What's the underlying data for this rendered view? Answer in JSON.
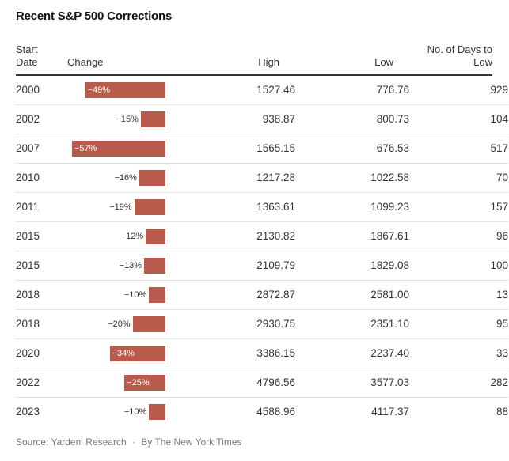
{
  "header": {
    "title": "Recent S&P 500 Corrections",
    "col_start_line1": "Start",
    "col_start_line2": "Date",
    "col_change": "Change",
    "col_high": "High",
    "col_low": "Low",
    "col_days_line1": "No. of Days to",
    "col_days_line2": "Low"
  },
  "footer": {
    "source": "Source: Yardeni Research",
    "separator": "·",
    "credit": "By The New York Times"
  },
  "colors": {
    "bar": "#b85a4c",
    "rule": "#333333",
    "row_border": "#e2e2e2"
  },
  "chart_data": {
    "type": "table",
    "title": "Recent S&P 500 Corrections",
    "columns": [
      "Start Date",
      "Change",
      "High",
      "Low",
      "No. of Days to Low"
    ],
    "rows": [
      {
        "year": "2000",
        "change": -49,
        "change_label": "−49%",
        "high": "1527.46",
        "low": "776.76",
        "days": "929"
      },
      {
        "year": "2002",
        "change": -15,
        "change_label": "−15%",
        "high": "938.87",
        "low": "800.73",
        "days": "104"
      },
      {
        "year": "2007",
        "change": -57,
        "change_label": "−57%",
        "high": "1565.15",
        "low": "676.53",
        "days": "517"
      },
      {
        "year": "2010",
        "change": -16,
        "change_label": "−16%",
        "high": "1217.28",
        "low": "1022.58",
        "days": "70"
      },
      {
        "year": "2011",
        "change": -19,
        "change_label": "−19%",
        "high": "1363.61",
        "low": "1099.23",
        "days": "157"
      },
      {
        "year": "2015",
        "change": -12,
        "change_label": "−12%",
        "high": "2130.82",
        "low": "1867.61",
        "days": "96"
      },
      {
        "year": "2015",
        "change": -13,
        "change_label": "−13%",
        "high": "2109.79",
        "low": "1829.08",
        "days": "100"
      },
      {
        "year": "2018",
        "change": -10,
        "change_label": "−10%",
        "high": "2872.87",
        "low": "2581.00",
        "days": "13"
      },
      {
        "year": "2018",
        "change": -20,
        "change_label": "−20%",
        "high": "2930.75",
        "low": "2351.10",
        "days": "95"
      },
      {
        "year": "2020",
        "change": -34,
        "change_label": "−34%",
        "high": "3386.15",
        "low": "2237.40",
        "days": "33"
      },
      {
        "year": "2022",
        "change": -25,
        "change_label": "−25%",
        "high": "4796.56",
        "low": "3577.03",
        "days": "282"
      },
      {
        "year": "2023",
        "change": -10,
        "change_label": "−10%",
        "high": "4588.96",
        "low": "4117.37",
        "days": "88"
      }
    ]
  }
}
